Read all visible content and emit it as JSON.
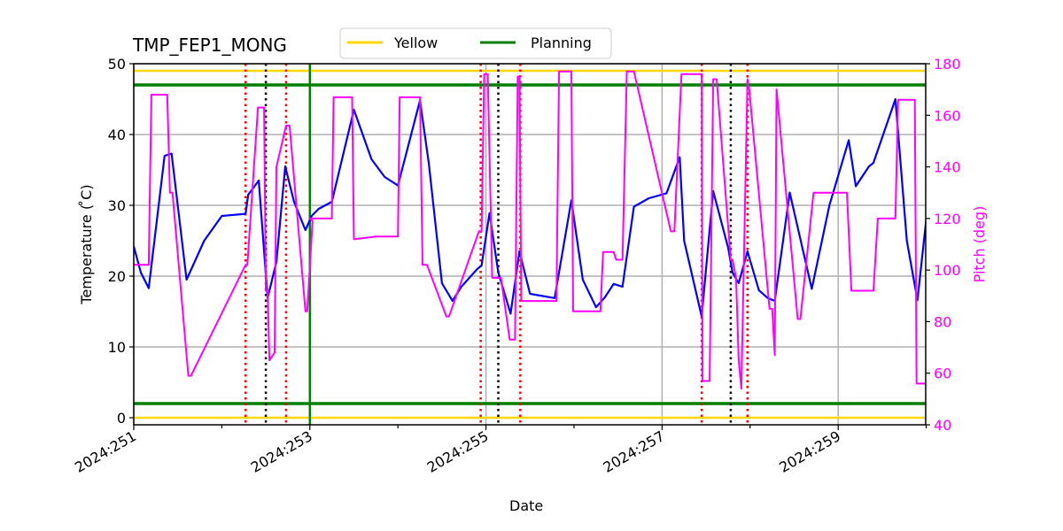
{
  "chart_data": {
    "type": "line",
    "title": "TMP_FEP1_MONG",
    "xlabel": "Date",
    "ylabel": "Temperature ($^\\circ$C)",
    "ylabel_display": "Temperature ( ̊C)",
    "ylabel_right": "Pitch (deg)",
    "x_range": [
      251.0,
      260.0
    ],
    "ylim": [
      -1,
      50
    ],
    "ylim_right": [
      40,
      180
    ],
    "grid": true,
    "legend_position": "top-center (above plot)",
    "x_ticks": [
      "2024:251",
      "2024:253",
      "2024:255",
      "2024:257",
      "2024:259"
    ],
    "x_tick_values": [
      251,
      253,
      255,
      257,
      259
    ],
    "y_ticks": [
      0,
      10,
      20,
      30,
      40,
      50
    ],
    "y_ticks_right": [
      40,
      60,
      80,
      100,
      120,
      140,
      160,
      180
    ],
    "legend": [
      {
        "label": "Yellow",
        "color": "#ffd700"
      },
      {
        "label": "Planning",
        "color": "#008000"
      }
    ],
    "limit_lines": {
      "yellow": [
        0,
        49
      ],
      "planning": [
        2,
        47
      ]
    },
    "vertical_lines": {
      "planning_green": [
        253.0
      ],
      "red_dotted": [
        252.27,
        252.73,
        254.94,
        255.39,
        257.45,
        257.97
      ],
      "black_dotted": [
        252.5,
        255.14,
        257.78
      ]
    },
    "series": [
      {
        "name": "TMP_FEP1_MONG (temperature)",
        "axis": "left",
        "color": "#0000ff",
        "x": [
          251.0,
          251.08,
          251.17,
          251.35,
          251.43,
          251.6,
          251.8,
          252.0,
          252.27,
          252.3,
          252.42,
          252.52,
          252.62,
          252.72,
          252.82,
          252.95,
          253.02,
          253.1,
          253.25,
          253.5,
          253.7,
          253.85,
          254.0,
          254.25,
          254.35,
          254.5,
          254.62,
          254.72,
          254.9,
          254.95,
          255.04,
          255.14,
          255.28,
          255.38,
          255.5,
          255.78,
          255.97,
          256.1,
          256.25,
          256.35,
          256.45,
          256.55,
          256.68,
          256.85,
          257.05,
          257.2,
          257.25,
          257.45,
          257.58,
          257.75,
          257.8,
          257.87,
          257.97,
          258.1,
          258.2,
          258.28,
          258.45,
          258.7,
          258.9,
          259.12,
          259.2,
          259.35,
          259.4,
          259.65,
          259.78,
          259.9,
          260.0
        ],
        "y": [
          24.2,
          20.5,
          18.3,
          37.0,
          37.3,
          19.5,
          25.0,
          28.5,
          28.8,
          31.5,
          33.5,
          16.9,
          22.0,
          35.5,
          30.5,
          26.5,
          28.5,
          29.5,
          30.5,
          43.5,
          36.5,
          34.0,
          32.8,
          44.8,
          36.0,
          19.0,
          16.5,
          18.5,
          21.0,
          21.5,
          28.9,
          20.5,
          14.7,
          23.5,
          17.5,
          16.9,
          30.7,
          19.5,
          15.6,
          17.0,
          18.9,
          18.5,
          29.8,
          31.0,
          31.7,
          36.8,
          25.0,
          14.3,
          32.0,
          24.0,
          20.5,
          19.0,
          23.5,
          18.0,
          16.9,
          16.5,
          31.8,
          18.2,
          30.0,
          39.2,
          32.7,
          35.5,
          36.0,
          45.0,
          25.0,
          16.6,
          28.0
        ]
      },
      {
        "name": "Pitch",
        "axis": "right",
        "color": "#ff00ff",
        "step": true,
        "x": [
          251.0,
          251.17,
          251.2,
          251.38,
          251.41,
          251.44,
          251.62,
          251.65,
          252.27,
          252.29,
          252.41,
          252.48,
          252.5,
          252.52,
          252.54,
          252.6,
          252.62,
          252.73,
          252.77,
          252.95,
          252.97,
          253.03,
          253.0,
          253.25,
          253.27,
          253.48,
          253.5,
          253.51,
          253.75,
          254.0,
          254.02,
          254.25,
          254.28,
          254.33,
          254.55,
          254.58,
          254.92,
          254.95,
          254.98,
          255.02,
          255.07,
          255.17,
          255.27,
          255.33,
          255.36,
          255.38,
          255.4,
          255.8,
          255.83,
          255.97,
          255.99,
          256.3,
          256.33,
          256.45,
          256.48,
          256.55,
          256.6,
          256.68,
          257.1,
          257.14,
          257.22,
          257.45,
          257.46,
          257.54,
          257.58,
          257.62,
          257.78,
          257.8,
          257.84,
          257.87,
          257.9,
          257.97,
          257.99,
          258.22,
          258.25,
          258.28,
          258.3,
          258.54,
          258.57,
          258.72,
          258.75,
          259.1,
          259.15,
          259.4,
          259.45,
          259.65,
          259.68,
          259.87,
          259.89,
          260.0
        ],
        "y": [
          102,
          102,
          168,
          168,
          130,
          130,
          59,
          59,
          102,
          102,
          163,
          163,
          92,
          92,
          65,
          68,
          140,
          156,
          156,
          84,
          84,
          119,
          120,
          120,
          167,
          167,
          112,
          112,
          113,
          113,
          167,
          167,
          102,
          102,
          82,
          82,
          115,
          115,
          176,
          176,
          97,
          97,
          73,
          73,
          175,
          175,
          88,
          88,
          177,
          177,
          84,
          84,
          107,
          107,
          104,
          104,
          177,
          177,
          115,
          115,
          176,
          176,
          57,
          57,
          174,
          174,
          104,
          104,
          97,
          65,
          54,
          174,
          170,
          85,
          85,
          67,
          170,
          81,
          81,
          130,
          130,
          130,
          92,
          92,
          120,
          120,
          166,
          166,
          56,
          56
        ]
      }
    ]
  }
}
